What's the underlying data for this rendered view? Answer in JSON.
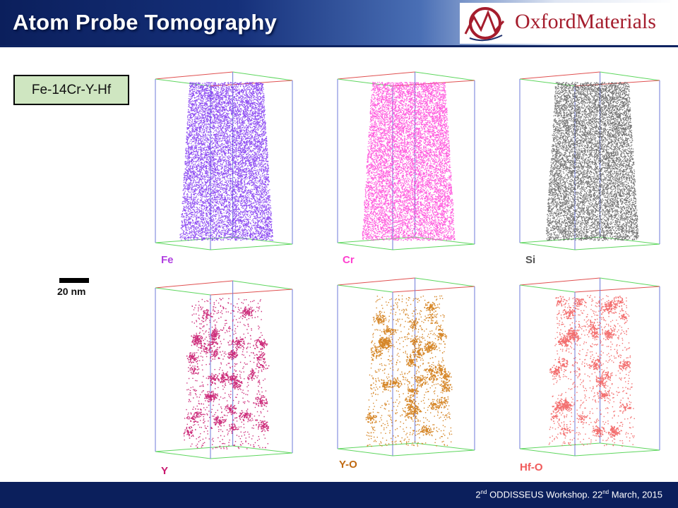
{
  "slide": {
    "title": "Atom Probe Tomography",
    "logo_text": "OxfordMaterials",
    "sample": "Fe-14Cr-Y-Hf",
    "scale_label": "20 nm",
    "footer": {
      "ord1": "2",
      "ord1_sup": "nd",
      "event": " ODDISSEUS Workshop. 22",
      "ord2_sup": "nd",
      "date": " March, 2015"
    }
  },
  "maps": [
    {
      "label": "Fe",
      "color": "#7b2ff0",
      "label_color": "#b040e0",
      "style": "dense"
    },
    {
      "label": "Cr",
      "color": "#ff3fd8",
      "label_color": "#ff40d0",
      "style": "dense"
    },
    {
      "label": "Si",
      "color": "#5a5a5a",
      "label_color": "#555555",
      "style": "dense"
    },
    {
      "label": "Y",
      "color": "#c8186e",
      "label_color": "#c8186e",
      "style": "cluster"
    },
    {
      "label": "Y-O",
      "color": "#d27a12",
      "label_color": "#c06a12",
      "style": "cluster"
    },
    {
      "label": "Hf-O",
      "color": "#f26060",
      "label_color": "#f05a5a",
      "style": "cluster"
    }
  ]
}
